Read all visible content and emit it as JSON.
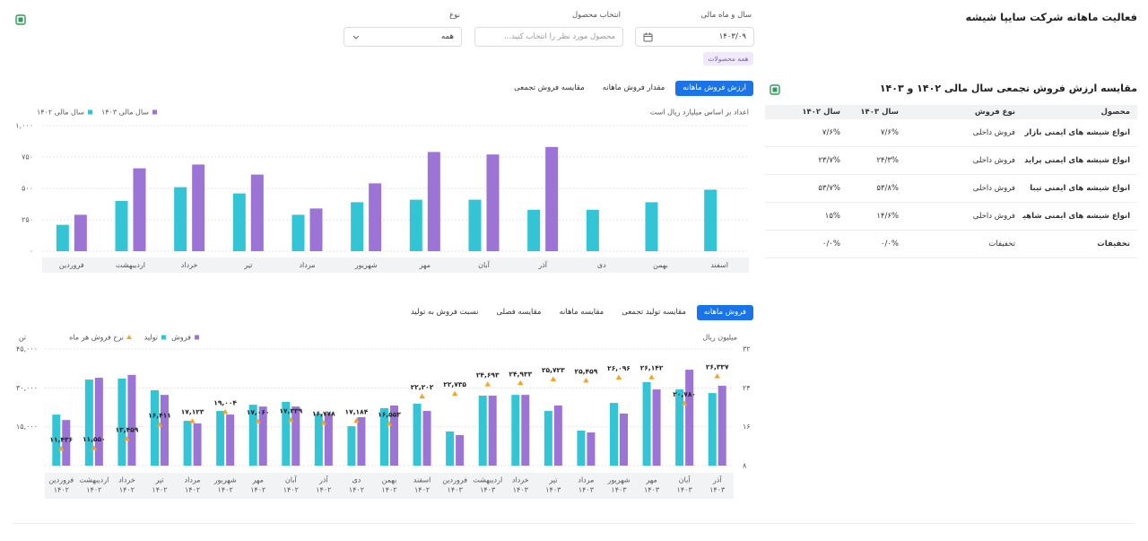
{
  "header": {
    "title": "فعالیت ماهانه شرکت سایپا شیشه"
  },
  "filters": [
    {
      "label": "سال و ماه مالی",
      "value": "۱۴۰۳/۰۹"
    },
    {
      "label": "انتخاب محصول",
      "placeholder": "محصول مورد نظر را انتخاب کنید..."
    },
    {
      "label": "نوع",
      "value": "همه"
    }
  ],
  "filter_tag": "همه محصولات",
  "table": {
    "title": "مقایسه ارزش فروش تجمعی سال مالی ۱۴۰۲ و ۱۴۰۳",
    "columns": [
      "محصول",
      "نوع فروش",
      "سال ۱۴۰۳",
      "سال ۱۴۰۲"
    ],
    "rows": [
      [
        "انواع شیشه های ایمنی بازار یدک",
        "فروش داخلی",
        "۷/۶%",
        "۷/۶%"
      ],
      [
        "انواع شیشه های ایمنی پراید",
        "فروش داخلی",
        "۲۴/۳%",
        "۲۳/۷%"
      ],
      [
        "انواع شیشه های ایمنی تیبا",
        "فروش داخلی",
        "۵۳/۸%",
        "۵۳/۷%"
      ],
      [
        "انواع شیشه های ایمنی شاهین (...",
        "فروش داخلی",
        "۱۴/۶%",
        "۱۵%"
      ],
      [
        "تخفیفات",
        "تخفیفات",
        "۰/۰%",
        "۰/۰%"
      ]
    ]
  },
  "chart_data": [
    {
      "type": "bar",
      "tabs": [
        "ارزش فروش ماهانه",
        "مقدار فروش ماهانه",
        "مقایسه فروش تجمعی"
      ],
      "active_tab": 0,
      "note": "اعداد بر اساس میلیارد ریال است",
      "categories": [
        "فروردین",
        "اردیبهشت",
        "خرداد",
        "تیر",
        "مرداد",
        "شهریور",
        "مهر",
        "آبان",
        "آذر",
        "دی",
        "بهمن",
        "اسفند"
      ],
      "series": [
        {
          "name": "سال مالی ۱۴۰۲",
          "color": "#33c5d6",
          "values": [
            210,
            400,
            510,
            460,
            290,
            390,
            410,
            410,
            330,
            330,
            390,
            490
          ]
        },
        {
          "name": "سال مالی ۱۴۰۳",
          "color": "#9b74d6",
          "values": [
            290,
            660,
            690,
            610,
            340,
            540,
            790,
            770,
            830,
            null,
            null,
            null
          ]
        }
      ],
      "ylim": [
        0,
        1000
      ],
      "yticks": [
        {
          "value": 0,
          "label": "۰"
        },
        {
          "value": 250,
          "label": "۲۵۰"
        },
        {
          "value": 500,
          "label": "۵۰۰"
        },
        {
          "value": 750,
          "label": "۷۵۰"
        },
        {
          "value": 1000,
          "label": "۱,۰۰۰"
        }
      ],
      "grid": true,
      "legend": "top-left"
    },
    {
      "type": "combo",
      "tabs": [
        "فروش ماهانه",
        "مقایسه تولید تجمعی",
        "مقایسه ماهانه",
        "مقایسه فصلی",
        "نسبت فروش به تولید"
      ],
      "active_tab": 0,
      "ylabel": "تن",
      "y2label": "میلیون ریال",
      "categories": [
        [
          "فروردین",
          "۱۴۰۲"
        ],
        [
          "اردیبهشت",
          "۱۴۰۲"
        ],
        [
          "خرداد",
          "۱۴۰۲"
        ],
        [
          "تیر",
          "۱۴۰۲"
        ],
        [
          "مرداد",
          "۱۴۰۲"
        ],
        [
          "شهریور",
          "۱۴۰۲"
        ],
        [
          "مهر",
          "۱۴۰۲"
        ],
        [
          "آبان",
          "۱۴۰۲"
        ],
        [
          "آذر",
          "۱۴۰۲"
        ],
        [
          "دی",
          "۱۴۰۲"
        ],
        [
          "بهمن",
          "۱۴۰۲"
        ],
        [
          "اسفند",
          "۱۴۰۲"
        ],
        [
          "فروردین",
          "۱۴۰۳"
        ],
        [
          "اردیبهشت",
          "۱۴۰۳"
        ],
        [
          "خرداد",
          "۱۴۰۳"
        ],
        [
          "تیر",
          "۱۴۰۳"
        ],
        [
          "مرداد",
          "۱۴۰۳"
        ],
        [
          "شهریور",
          "۱۴۰۳"
        ],
        [
          "مهر",
          "۱۴۰۳"
        ],
        [
          "آبان",
          "۱۴۰۳"
        ],
        [
          "آذر",
          "۱۴۰۳"
        ]
      ],
      "series": [
        {
          "name": "تولید",
          "color": "#33c5d6",
          "values": [
            19700,
            33200,
            33600,
            29100,
            17300,
            21100,
            23500,
            24600,
            20100,
            15200,
            22200,
            23900,
            13200,
            27000,
            27300,
            21100,
            13500,
            24200,
            32200,
            29400,
            28000
          ]
        },
        {
          "name": "فروش",
          "color": "#9b74d6",
          "values": [
            17600,
            33900,
            35000,
            27300,
            16300,
            19700,
            22800,
            22800,
            20100,
            18700,
            23200,
            21100,
            11800,
            27000,
            27300,
            23200,
            12800,
            20100,
            29400,
            37000,
            30800
          ]
        },
        {
          "name": "نرخ فروش هر ماه",
          "color": "#f5a524",
          "axis": "y2",
          "values": [
            11.436,
            11.55,
            13.459,
            16.411,
            17.123,
            19.004,
            17.06,
            17.339,
            16.778,
            17.184,
            16.553,
            22.202,
            22.735,
            24.693,
            24.933,
            25.723,
            25.459,
            26.096,
            26.142,
            20.78,
            26.337
          ],
          "value_labels": [
            "۱۱,۴۳۶",
            "۱۱,۵۵۰",
            "۱۳,۴۵۹",
            "۱۶,۴۱۱",
            "۱۷,۱۲۳",
            "۱۹,۰۰۴",
            "۱۷,۰۶۰",
            "۱۷,۳۳۹",
            "۱۶,۷۷۸",
            "۱۷,۱۸۴",
            "۱۶,۵۵۳",
            "۲۲,۲۰۲",
            "۲۲,۷۳۵",
            "۲۴,۶۹۳",
            "۲۴,۹۳۳",
            "۲۵,۷۲۳",
            "۲۵,۴۵۹",
            "۲۶,۰۹۶",
            "۲۶,۱۴۲",
            "۲۰,۷۸۰",
            "۲۶,۳۳۷"
          ]
        }
      ],
      "ylim": [
        0,
        45000
      ],
      "yticks": [
        {
          "value": 15000,
          "label": "۱۵,۰۰۰"
        },
        {
          "value": 30000,
          "label": "۳۰,۰۰۰"
        },
        {
          "value": 45000,
          "label": "۴۵,۰۰۰"
        }
      ],
      "y2lim": [
        8,
        32
      ],
      "y2ticks": [
        {
          "value": 8,
          "label": "۸"
        },
        {
          "value": 16,
          "label": "۱۶"
        },
        {
          "value": 24,
          "label": "۲۴"
        },
        {
          "value": 32,
          "label": "۳۲"
        }
      ],
      "grid": true,
      "legend": "top-left"
    }
  ]
}
